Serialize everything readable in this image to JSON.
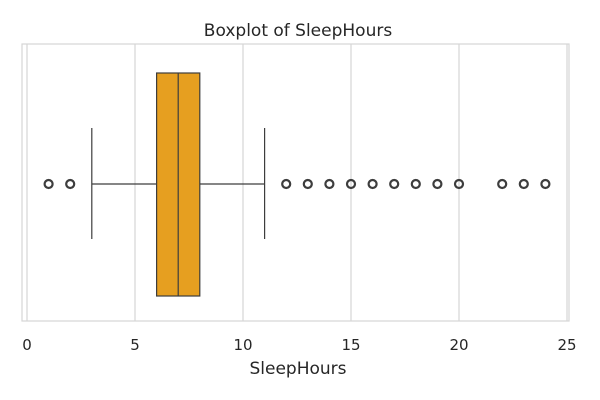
{
  "chart_data": {
    "type": "boxplot",
    "orientation": "horizontal",
    "title": "Boxplot of SleepHours",
    "xlabel": "SleepHours",
    "ylabel": "",
    "xlim": [
      0,
      25
    ],
    "xticks": [
      0,
      5,
      10,
      15,
      20,
      25
    ],
    "grid": "vertical",
    "box": {
      "q1": 6,
      "median": 7,
      "q3": 8,
      "whisker_low": 3,
      "whisker_high": 11
    },
    "outliers": [
      1,
      2,
      12,
      13,
      14,
      15,
      16,
      17,
      18,
      19,
      20,
      22,
      23,
      24
    ],
    "colors": {
      "box_fill": "#E69F20",
      "line": "#3d3d3d",
      "grid": "#d6d6d6",
      "frame": "#d6d6d6"
    }
  }
}
